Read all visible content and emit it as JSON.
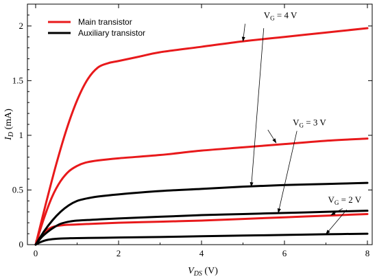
{
  "chart_data": {
    "type": "line",
    "title": "",
    "xlabel": {
      "main": "V",
      "sub": "DS",
      "unit": " (V)"
    },
    "ylabel": {
      "main": "I",
      "sub": "D",
      "unit": " (mA)"
    },
    "xlim": [
      0,
      8
    ],
    "ylim": [
      0,
      2.2
    ],
    "xticks": [
      0,
      2,
      4,
      6,
      8
    ],
    "yticks": [
      0,
      0.5,
      1,
      1.5,
      2
    ],
    "ytick_labels": [
      "0",
      "0.5",
      "1",
      "1.5",
      "2"
    ],
    "grid": false,
    "legend_position": "top-left",
    "legend": [
      {
        "label": "Main transistor",
        "color": "#e8191b"
      },
      {
        "label": "Auxiliary transistor",
        "color": "#000000"
      }
    ],
    "series": [
      {
        "name": "Main transistor",
        "vg": "VG = 4 V",
        "color": "#e8191b",
        "x": [
          0,
          0.25,
          0.5,
          0.75,
          1,
          1.25,
          1.5,
          1.75,
          2,
          2.5,
          3,
          4,
          5,
          6,
          7,
          8
        ],
        "y": [
          0,
          0.38,
          0.74,
          1.06,
          1.32,
          1.51,
          1.62,
          1.66,
          1.68,
          1.72,
          1.76,
          1.81,
          1.86,
          1.9,
          1.94,
          1.98
        ]
      },
      {
        "name": "Main transistor",
        "vg": "VG = 3 V",
        "color": "#e8191b",
        "x": [
          0,
          0.2,
          0.4,
          0.6,
          0.8,
          1,
          1.2,
          1.5,
          2,
          3,
          4,
          5,
          6,
          7,
          8
        ],
        "y": [
          0,
          0.24,
          0.44,
          0.58,
          0.67,
          0.72,
          0.75,
          0.77,
          0.79,
          0.82,
          0.86,
          0.89,
          0.92,
          0.95,
          0.97
        ]
      },
      {
        "name": "Main transistor",
        "vg": "VG = 2 V",
        "color": "#e8191b",
        "x": [
          0,
          0.1,
          0.2,
          0.3,
          0.4,
          0.5,
          0.7,
          1,
          2,
          3,
          4,
          5,
          6,
          7,
          8
        ],
        "y": [
          0,
          0.06,
          0.11,
          0.14,
          0.16,
          0.17,
          0.18,
          0.185,
          0.2,
          0.21,
          0.22,
          0.235,
          0.25,
          0.265,
          0.28
        ]
      },
      {
        "name": "Auxiliary transistor",
        "vg": "VG = 4 V",
        "color": "#000000",
        "x": [
          0,
          0.2,
          0.4,
          0.6,
          0.8,
          1,
          1.2,
          1.5,
          2,
          3,
          4,
          5,
          6,
          7,
          8
        ],
        "y": [
          0,
          0.12,
          0.22,
          0.3,
          0.36,
          0.4,
          0.42,
          0.44,
          0.46,
          0.49,
          0.51,
          0.53,
          0.545,
          0.555,
          0.565
        ]
      },
      {
        "name": "Auxiliary transistor",
        "vg": "VG = 3 V",
        "color": "#000000",
        "x": [
          0,
          0.15,
          0.3,
          0.45,
          0.6,
          0.8,
          1,
          1.5,
          2,
          3,
          4,
          5,
          6,
          7,
          8
        ],
        "y": [
          0,
          0.07,
          0.12,
          0.16,
          0.19,
          0.21,
          0.22,
          0.23,
          0.24,
          0.255,
          0.27,
          0.28,
          0.29,
          0.3,
          0.31
        ]
      },
      {
        "name": "Auxiliary transistor",
        "vg": "VG = 2 V",
        "color": "#000000",
        "x": [
          0,
          0.1,
          0.2,
          0.3,
          0.45,
          0.6,
          0.8,
          1,
          2,
          3,
          4,
          5,
          6,
          7,
          8
        ],
        "y": [
          0,
          0.02,
          0.035,
          0.045,
          0.052,
          0.056,
          0.058,
          0.06,
          0.065,
          0.07,
          0.077,
          0.083,
          0.089,
          0.095,
          0.1
        ]
      }
    ],
    "annotations": [
      {
        "label_main": "V",
        "label_sub": "G",
        "label_rest": " = 4 V",
        "text_at": [
          5.5,
          2.07
        ],
        "arrows": [
          {
            "from": [
              5.05,
              2.02
            ],
            "to": [
              5.0,
              1.86
            ]
          },
          {
            "from": [
              5.5,
              1.98
            ],
            "to": [
              5.2,
              0.53
            ]
          }
        ]
      },
      {
        "label_main": "V",
        "label_sub": "G",
        "label_rest": " = 3 V",
        "text_at": [
          6.2,
          1.09
        ],
        "arrows": [
          {
            "from": [
              5.6,
              1.05
            ],
            "to": [
              5.8,
              0.93
            ]
          },
          {
            "from": [
              6.3,
              1.04
            ],
            "to": [
              5.85,
              0.29
            ]
          }
        ]
      },
      {
        "label_main": "V",
        "label_sub": "G",
        "label_rest": " = 2 V",
        "text_at": [
          7.05,
          0.385
        ],
        "arrows": [
          {
            "from": [
              7.4,
              0.33
            ],
            "to": [
              7.12,
              0.27
            ]
          },
          {
            "from": [
              7.5,
              0.32
            ],
            "to": [
              7.0,
              0.095
            ]
          }
        ]
      }
    ]
  }
}
